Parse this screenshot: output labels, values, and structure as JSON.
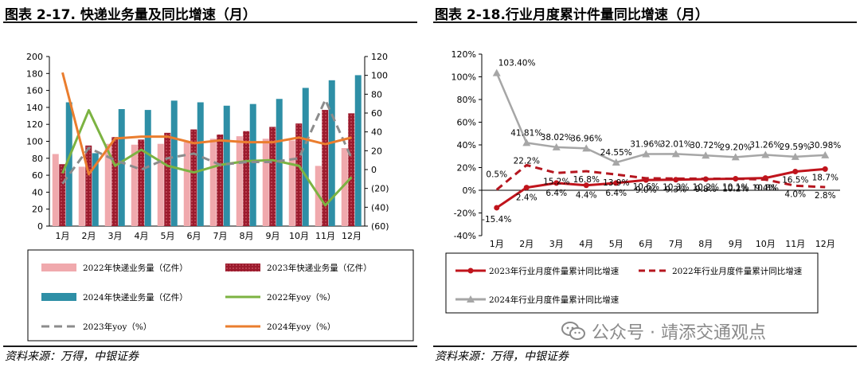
{
  "left": {
    "title": "图表 2-17. 快递业务量及同比增速（月）",
    "source": "资料来源：万得，中银证券"
  },
  "right": {
    "title": "图表 2-18.行业月度累计件量同比增速（月）",
    "source": "资料来源：万得，中银证券"
  },
  "watermark": {
    "text": "公众号 · 靖添交通观点",
    "icon": "wechat-icon"
  },
  "chart_data": [
    {
      "type": "bar",
      "categories": [
        "1月",
        "2月",
        "3月",
        "4月",
        "5月",
        "6月",
        "7月",
        "8月",
        "9月",
        "10月",
        "11月",
        "12月"
      ],
      "y_left": {
        "range": [
          0,
          200
        ],
        "ticks": [
          "0",
          "20",
          "40",
          "60",
          "80",
          "100",
          "120",
          "140",
          "160",
          "180",
          "200"
        ]
      },
      "y_right": {
        "range": [
          -60,
          120
        ],
        "ticks": [
          "(60)",
          "(40)",
          "(20)",
          "0",
          "20",
          "40",
          "60",
          "80",
          "100",
          "120"
        ]
      },
      "series": [
        {
          "name": "2022年快递业务量（亿件）",
          "type": "bar",
          "axis": "left",
          "color": "#f0a9ad",
          "values": [
            85,
            70,
            97,
            96,
            97,
            99,
            103,
            106,
            103,
            101,
            71,
            92
          ]
        },
        {
          "name": "2023年快递业务量（亿件）",
          "type": "bar",
          "axis": "left",
          "color": "#9b1b2d",
          "pattern": "dashed-outline",
          "values": [
            73,
            95,
            105,
            102,
            110,
            114,
            108,
            112,
            117,
            121,
            137,
            133
          ]
        },
        {
          "name": "2024年快递业务量（亿件）",
          "type": "bar",
          "axis": "left",
          "color": "#2e8fa6",
          "values": [
            146,
            86,
            138,
            137,
            148,
            146,
            142,
            144,
            150,
            163,
            172,
            178
          ]
        },
        {
          "name": "2022年yoy（%）",
          "type": "line",
          "axis": "right",
          "color": "#7cb342",
          "values": [
            -4,
            63,
            4,
            21,
            4,
            -3,
            5,
            9,
            10,
            4,
            -38,
            -8
          ]
        },
        {
          "name": "2023年yoy（%）",
          "type": "line",
          "axis": "right",
          "color": "#8c8c8c",
          "dash": "dashed",
          "values": [
            -15,
            23,
            10,
            0,
            12,
            17,
            5,
            8,
            8,
            12,
            74,
            12
          ]
        },
        {
          "name": "2024年yoy（%）",
          "type": "line",
          "axis": "right",
          "color": "#ea7d2e",
          "values": [
            103,
            -5,
            33,
            35,
            35,
            28,
            31,
            29,
            29,
            34,
            27,
            34
          ]
        }
      ]
    },
    {
      "type": "line",
      "categories": [
        "1月",
        "2月",
        "3月",
        "4月",
        "5月",
        "6月",
        "7月",
        "8月",
        "9月",
        "10月",
        "11月",
        "12月"
      ],
      "y": {
        "range": [
          -40,
          120
        ],
        "ticks": [
          "-40%",
          "-20%",
          "0%",
          "20%",
          "40%",
          "60%",
          "80%",
          "100%",
          "120%"
        ]
      },
      "series": [
        {
          "name": "2023年行业月度件量累计同比增速",
          "color": "#c0141c",
          "style": "solid-marker",
          "values": [
            -15.4,
            2.4,
            6.4,
            4.4,
            6.4,
            9.0,
            9.3,
            9.8,
            10.2,
            10.8,
            16.5,
            18.7
          ],
          "labels": [
            "-15.4%",
            "2.4%",
            "6.4%",
            "4.4%",
            "6.4%",
            "9.0%",
            "9.3%",
            "9.8%",
            "10.2%",
            "10.8%",
            "16.5%",
            "18.7%"
          ]
        },
        {
          "name": "2022年行业月度件量累计同比增速",
          "color": "#b5161f",
          "style": "dashed",
          "values": [
            0.5,
            22.2,
            15.2,
            16.8,
            13.9,
            10.6,
            10.3,
            10.2,
            10.1,
            9.4,
            4.0,
            2.8
          ],
          "labels": [
            "0.5%",
            "22.2%",
            "15.2%",
            "16.8%",
            "13.9%",
            "10.6%",
            "10.3%",
            "10.2%",
            "10.1%",
            "9.4%",
            "4.0%",
            "2.8%"
          ]
        },
        {
          "name": "2024年行业月度件量累计同比增速",
          "color": "#a6a6a6",
          "style": "solid-triangle",
          "values": [
            103.4,
            41.81,
            38.02,
            36.96,
            24.55,
            31.96,
            32.01,
            30.72,
            29.2,
            31.26,
            29.59,
            30.98
          ],
          "labels": [
            "103.40%",
            "41.81%",
            "38.02%",
            "36.96%",
            "24.55%",
            "31.96%",
            "32.01%",
            "30.72%",
            "29.20%",
            "31.26%",
            "29.59%",
            "30.98%"
          ]
        }
      ]
    }
  ]
}
